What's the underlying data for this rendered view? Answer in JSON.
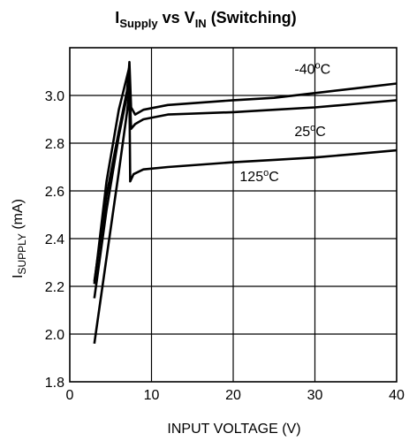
{
  "chart_data": {
    "type": "line",
    "title": {
      "main": "I",
      "main_sub": "Supply",
      "mid": " vs V",
      "mid_sub": "IN",
      "tail": " (Switching)"
    },
    "xlabel": "INPUT VOLTAGE (V)",
    "ylabel": {
      "main": "I",
      "sub": "SUPPLY",
      "unit": " (mA)"
    },
    "xlim": [
      0,
      40
    ],
    "ylim": [
      1.8,
      3.2
    ],
    "xticks": [
      0,
      10,
      20,
      30,
      40
    ],
    "yticks": [
      1.8,
      2.0,
      2.2,
      2.4,
      2.6,
      2.8,
      3.0
    ],
    "ytick_labels": [
      "1.8",
      "2.0",
      "2.2",
      "2.4",
      "2.6",
      "2.8",
      "3.0"
    ],
    "grid": true,
    "series": [
      {
        "name": "-40°C",
        "label_parts": [
          "-40",
          "o",
          "C"
        ],
        "label_at": [
          27.5,
          3.09
        ],
        "points": [
          [
            3,
            2.22
          ],
          [
            4.5,
            2.58
          ],
          [
            6,
            2.85
          ],
          [
            7.0,
            3.02
          ],
          [
            7.2,
            3.09
          ],
          [
            7.3,
            3.14
          ],
          [
            7.5,
            2.95
          ],
          [
            8,
            2.92
          ],
          [
            9,
            2.94
          ],
          [
            12,
            2.96
          ],
          [
            20,
            2.98
          ],
          [
            25,
            2.99
          ],
          [
            30,
            3.01
          ],
          [
            35,
            3.03
          ],
          [
            40,
            3.05
          ]
        ]
      },
      {
        "name": "25°C",
        "label_parts": [
          "25",
          "o",
          "C"
        ],
        "label_at": [
          27.5,
          2.83
        ],
        "points": [
          [
            3,
            2.15
          ],
          [
            4.5,
            2.52
          ],
          [
            6,
            2.83
          ],
          [
            7.0,
            3.0
          ],
          [
            7.3,
            3.06
          ],
          [
            7.5,
            2.86
          ],
          [
            8,
            2.88
          ],
          [
            9,
            2.9
          ],
          [
            12,
            2.92
          ],
          [
            20,
            2.93
          ],
          [
            25,
            2.94
          ],
          [
            30,
            2.95
          ],
          [
            35,
            2.965
          ],
          [
            40,
            2.98
          ]
        ]
      },
      {
        "name": "125°C",
        "label_parts": [
          "125",
          "o",
          "C"
        ],
        "label_at": [
          20.8,
          2.64
        ],
        "points": [
          [
            3,
            1.96
          ],
          [
            4.5,
            2.32
          ],
          [
            6,
            2.68
          ],
          [
            7.0,
            2.93
          ],
          [
            7.3,
            3.02
          ],
          [
            7.4,
            2.64
          ],
          [
            7.8,
            2.67
          ],
          [
            9,
            2.69
          ],
          [
            12,
            2.7
          ],
          [
            20,
            2.72
          ],
          [
            25,
            2.73
          ],
          [
            30,
            2.74
          ],
          [
            35,
            2.755
          ],
          [
            40,
            2.77
          ]
        ]
      }
    ],
    "reversal_curve": {
      "points": [
        [
          7.3,
          3.12
        ],
        [
          6.0,
          2.94
        ],
        [
          4.5,
          2.64
        ],
        [
          3.4,
          2.32
        ],
        [
          3.0,
          2.21
        ]
      ]
    }
  }
}
